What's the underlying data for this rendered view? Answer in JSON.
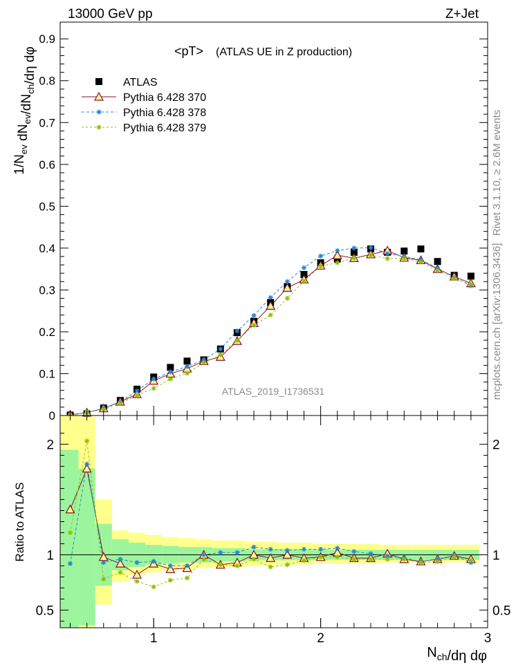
{
  "header": {
    "left": "13000 GeV pp",
    "right": "Z+Jet"
  },
  "title": "<pT>",
  "subtitle": "(ATLAS UE in Z production)",
  "watermark": "ATLAS_2019_I1736531",
  "side_text": {
    "rivet": "Rivet 3.1.10, ≥ 2.6M events",
    "mcplots": "mcplots.cern.ch [arXiv:1306.3436]"
  },
  "chart_data": [
    {
      "type": "scatter",
      "title": "<pT>",
      "ylabel": "1/N_ev dN_ev/dN_ch/dη dφ",
      "xlabel": "N_ch/dη dφ",
      "xlim": [
        0.44,
        3.0
      ],
      "ylim": [
        0,
        0.94
      ],
      "y_ticks": [
        "0",
        "0.1",
        "0.2",
        "0.3",
        "0.4",
        "0.5",
        "0.6",
        "0.7",
        "0.8",
        "0.9"
      ],
      "legend_position": "top-left",
      "legend": [
        "ATLAS",
        "Pythia 6.428 370",
        "Pythia 6.428 378",
        "Pythia 6.428 379"
      ],
      "x": [
        0.5,
        0.6,
        0.7,
        0.8,
        0.9,
        1.0,
        1.1,
        1.2,
        1.3,
        1.4,
        1.5,
        1.6,
        1.7,
        1.8,
        1.9,
        2.0,
        2.1,
        2.2,
        2.3,
        2.4,
        2.5,
        2.6,
        2.7,
        2.8,
        2.9
      ],
      "series": [
        {
          "name": "ATLAS",
          "color": "#000000",
          "marker": "square",
          "values": [
            0.001,
            0.004,
            0.018,
            0.036,
            0.063,
            0.092,
            0.115,
            0.13,
            0.133,
            0.159,
            0.198,
            0.225,
            0.27,
            0.308,
            0.337,
            0.365,
            0.374,
            0.39,
            0.398,
            0.39,
            0.393,
            0.398,
            0.368,
            0.335,
            0.333
          ]
        },
        {
          "name": "Pythia 6.428 370",
          "color": "#8b0e2a",
          "marker": "triangle",
          "dash": "",
          "values": [
            0.002,
            0.007,
            0.017,
            0.033,
            0.051,
            0.083,
            0.1,
            0.112,
            0.13,
            0.14,
            0.178,
            0.221,
            0.262,
            0.305,
            0.325,
            0.358,
            0.383,
            0.376,
            0.385,
            0.394,
            0.377,
            0.371,
            0.35,
            0.332,
            0.316
          ]
        },
        {
          "name": "Pythia 6.428 378",
          "color": "#1f86d6",
          "marker": "star",
          "dash": "4,3",
          "values": [
            0.001,
            0.007,
            0.017,
            0.033,
            0.059,
            0.087,
            0.104,
            0.117,
            0.133,
            0.159,
            0.202,
            0.239,
            0.282,
            0.32,
            0.353,
            0.381,
            0.394,
            0.4,
            0.401,
            0.387,
            0.38,
            0.372,
            0.352,
            0.33,
            0.31
          ]
        },
        {
          "name": "Pythia 6.428 379",
          "color": "#8fbf00",
          "marker": "star",
          "dash": "3,3",
          "values": [
            0.001,
            0.008,
            0.014,
            0.03,
            0.048,
            0.065,
            0.087,
            0.101,
            0.126,
            0.145,
            0.179,
            0.216,
            0.24,
            0.28,
            0.321,
            0.357,
            0.365,
            0.376,
            0.383,
            0.375,
            0.376,
            0.367,
            0.347,
            0.327,
            0.314
          ]
        }
      ]
    },
    {
      "type": "line",
      "ylabel": "Ratio to ATLAS",
      "xlabel": "N_ch/dη dφ",
      "xlim": [
        0.44,
        3.0
      ],
      "ylim": [
        0.34,
        2.26
      ],
      "y_ticks": [
        "0.5",
        "1",
        "2"
      ],
      "x_ticks": [
        "1",
        "2",
        "3"
      ],
      "x": [
        0.5,
        0.6,
        0.7,
        0.8,
        0.9,
        1.0,
        1.1,
        1.2,
        1.3,
        1.4,
        1.5,
        1.6,
        1.7,
        1.8,
        1.9,
        2.0,
        2.1,
        2.2,
        2.3,
        2.4,
        2.5,
        2.6,
        2.7,
        2.8,
        2.9
      ],
      "band_edges": [
        0.44,
        0.55,
        0.65,
        0.75,
        0.85,
        0.95,
        1.05,
        1.15,
        1.25,
        1.35,
        1.45,
        1.55,
        1.65,
        1.75,
        1.85,
        1.95,
        2.05,
        2.15,
        2.25,
        2.35,
        2.45,
        2.55,
        2.65,
        2.75,
        2.85,
        2.95
      ],
      "band_green": [
        [
          0.3,
          1.95
        ],
        [
          0.36,
          1.78
        ],
        [
          0.72,
          1.28
        ],
        [
          0.86,
          1.14
        ],
        [
          0.89,
          1.11
        ],
        [
          0.91,
          1.09
        ],
        [
          0.92,
          1.08
        ],
        [
          0.93,
          1.07
        ],
        [
          0.93,
          1.07
        ],
        [
          0.94,
          1.06
        ],
        [
          0.94,
          1.06
        ],
        [
          0.95,
          1.05
        ],
        [
          0.95,
          1.05
        ],
        [
          0.95,
          1.05
        ],
        [
          0.95,
          1.05
        ],
        [
          0.95,
          1.05
        ],
        [
          0.955,
          1.045
        ],
        [
          0.955,
          1.045
        ],
        [
          0.955,
          1.045
        ],
        [
          0.955,
          1.045
        ],
        [
          0.955,
          1.045
        ],
        [
          0.955,
          1.045
        ],
        [
          0.955,
          1.045
        ],
        [
          0.955,
          1.045
        ],
        [
          0.955,
          1.045
        ]
      ],
      "band_yellow": [
        [
          0.3,
          2.3
        ],
        [
          0.3,
          2.25
        ],
        [
          0.55,
          1.5
        ],
        [
          0.76,
          1.22
        ],
        [
          0.82,
          1.2
        ],
        [
          0.84,
          1.18
        ],
        [
          0.86,
          1.16
        ],
        [
          0.87,
          1.15
        ],
        [
          0.88,
          1.14
        ],
        [
          0.89,
          1.13
        ],
        [
          0.89,
          1.13
        ],
        [
          0.9,
          1.12
        ],
        [
          0.9,
          1.12
        ],
        [
          0.91,
          1.11
        ],
        [
          0.91,
          1.11
        ],
        [
          0.92,
          1.1
        ],
        [
          0.92,
          1.1
        ],
        [
          0.92,
          1.1
        ],
        [
          0.92,
          1.1
        ],
        [
          0.93,
          1.09
        ],
        [
          0.93,
          1.09
        ],
        [
          0.93,
          1.09
        ],
        [
          0.93,
          1.09
        ],
        [
          0.93,
          1.09
        ],
        [
          0.93,
          1.09
        ]
      ],
      "series": [
        {
          "name": "Pythia 6.428 370",
          "color": "#8b0e2a",
          "marker": "triangle",
          "dash": "",
          "values": [
            1.41,
            1.78,
            0.98,
            0.92,
            0.82,
            0.92,
            0.87,
            0.88,
            1.0,
            0.91,
            0.93,
            1.0,
            0.97,
            1.0,
            0.97,
            0.98,
            1.02,
            0.97,
            0.97,
            1.01,
            0.96,
            0.94,
            0.96,
            0.99,
            0.96
          ]
        },
        {
          "name": "Pythia 6.428 378",
          "color": "#1f86d6",
          "marker": "star",
          "dash": "4,3",
          "values": [
            0.92,
            1.82,
            0.93,
            0.96,
            0.93,
            0.94,
            0.9,
            0.9,
            1.0,
            1.02,
            1.02,
            1.07,
            1.05,
            1.04,
            1.05,
            1.05,
            1.06,
            1.03,
            1.01,
            0.99,
            0.97,
            0.94,
            0.96,
            0.99,
            0.93
          ]
        },
        {
          "name": "Pythia 6.428 379",
          "color": "#8fbf00",
          "marker": "star",
          "dash": "3,3",
          "values": [
            1.2,
            2.03,
            0.78,
            0.84,
            0.76,
            0.71,
            0.77,
            0.79,
            0.96,
            0.91,
            0.9,
            0.96,
            0.89,
            0.91,
            0.95,
            0.98,
            0.98,
            0.96,
            0.96,
            0.96,
            0.96,
            0.93,
            0.94,
            0.98,
            0.95
          ]
        }
      ]
    }
  ]
}
